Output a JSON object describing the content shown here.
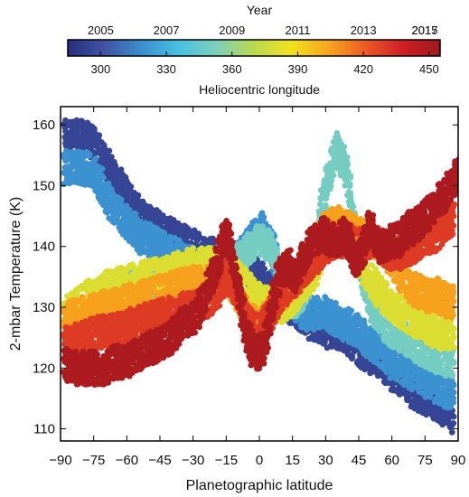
{
  "chart_data": {
    "type": "scatter",
    "title": "",
    "xlabel": "Planetographic latitude",
    "ylabel": "2-mbar Temperature (K)",
    "xlim": [
      -90,
      90
    ],
    "ylim": [
      108,
      163
    ],
    "x_ticks": [
      "−90",
      "−75",
      "−60",
      "−45",
      "−30",
      "−15",
      "0",
      "15",
      "30",
      "45",
      "60",
      "75",
      "90"
    ],
    "y_ticks": [
      "110",
      "120",
      "130",
      "140",
      "150",
      "160"
    ],
    "grid": false,
    "colorbar": {
      "top_label": "Year",
      "bottom_label": "Heliocentric longitude",
      "range": [
        285,
        455
      ],
      "year_ticks": [
        {
          "value": 300,
          "label": "2005"
        },
        {
          "value": 330,
          "label": "2007"
        },
        {
          "value": 360,
          "label": "2009"
        },
        {
          "value": 390,
          "label": "2011"
        },
        {
          "value": 420,
          "label": "2013"
        },
        {
          "value": 450,
          "label": "2015"
        },
        {
          "value": 470,
          "label": "2017"
        }
      ],
      "longitude_ticks": [
        "300",
        "330",
        "360",
        "390",
        "420",
        "450"
      ],
      "stops": [
        "#2a2e7e",
        "#3f55a5",
        "#3b8fd0",
        "#48c1e0",
        "#7dcfb9",
        "#b9d94f",
        "#f2e21c",
        "#f7a51d",
        "#ee5a24",
        "#cf1f26",
        "#9e1a1c"
      ]
    },
    "series": [
      {
        "longitude": 295,
        "points": [
          [
            -88,
            158
          ],
          [
            -85,
            158
          ],
          [
            -80,
            158
          ],
          [
            -75,
            157
          ],
          [
            -70,
            154
          ],
          [
            -65,
            151
          ],
          [
            -60,
            148
          ],
          [
            -55,
            146
          ],
          [
            -50,
            144
          ],
          [
            -45,
            143
          ],
          [
            -40,
            142
          ],
          [
            -35,
            141
          ],
          [
            -30,
            140
          ],
          [
            -25,
            139
          ],
          [
            -20,
            139
          ],
          [
            -15,
            138
          ],
          [
            -10,
            137
          ],
          [
            -5,
            136
          ],
          [
            0,
            135
          ],
          [
            5,
            133
          ],
          [
            10,
            131
          ],
          [
            15,
            130
          ],
          [
            20,
            128
          ],
          [
            25,
            127
          ],
          [
            30,
            126
          ],
          [
            35,
            126
          ],
          [
            40,
            125
          ],
          [
            45,
            123
          ],
          [
            50,
            122
          ],
          [
            55,
            121
          ],
          [
            60,
            119
          ],
          [
            65,
            118
          ],
          [
            70,
            116
          ],
          [
            75,
            115
          ],
          [
            80,
            114
          ],
          [
            85,
            113
          ],
          [
            88,
            112
          ]
        ]
      },
      {
        "longitude": 320,
        "points": [
          [
            -88,
            153
          ],
          [
            -85,
            153
          ],
          [
            -80,
            153
          ],
          [
            -75,
            152
          ],
          [
            -70,
            149
          ],
          [
            -65,
            146
          ],
          [
            -60,
            144
          ],
          [
            -55,
            142
          ],
          [
            -50,
            141
          ],
          [
            -45,
            140
          ],
          [
            -40,
            139
          ],
          [
            -35,
            138
          ],
          [
            -30,
            137
          ],
          [
            -25,
            137
          ],
          [
            -20,
            137
          ],
          [
            -15,
            138
          ],
          [
            -10,
            138
          ],
          [
            -5,
            140
          ],
          [
            0,
            143
          ],
          [
            5,
            141
          ],
          [
            10,
            134
          ],
          [
            15,
            131
          ],
          [
            20,
            129
          ],
          [
            25,
            129
          ],
          [
            30,
            129
          ],
          [
            35,
            128
          ],
          [
            40,
            127
          ],
          [
            45,
            126
          ],
          [
            50,
            124
          ],
          [
            55,
            123
          ],
          [
            60,
            121
          ],
          [
            65,
            120
          ],
          [
            70,
            119
          ],
          [
            75,
            118
          ],
          [
            80,
            117
          ],
          [
            85,
            116
          ],
          [
            88,
            116
          ]
        ]
      },
      {
        "longitude": 350,
        "points": [
          [
            -88,
            126
          ],
          [
            -80,
            128
          ],
          [
            -70,
            131
          ],
          [
            -60,
            133
          ],
          [
            -50,
            134
          ],
          [
            -40,
            135
          ],
          [
            -30,
            136
          ],
          [
            -20,
            137
          ],
          [
            -10,
            138
          ],
          [
            0,
            141
          ],
          [
            5,
            140
          ],
          [
            10,
            135
          ],
          [
            15,
            131
          ],
          [
            20,
            132
          ],
          [
            25,
            138
          ],
          [
            30,
            150
          ],
          [
            35,
            156
          ],
          [
            40,
            152
          ],
          [
            45,
            137
          ],
          [
            50,
            131
          ],
          [
            55,
            128
          ],
          [
            60,
            126
          ],
          [
            70,
            124
          ],
          [
            80,
            122
          ],
          [
            88,
            121
          ]
        ]
      },
      {
        "longitude": 380,
        "points": [
          [
            -88,
            129
          ],
          [
            -80,
            131
          ],
          [
            -70,
            133
          ],
          [
            -60,
            134
          ],
          [
            -50,
            135
          ],
          [
            -40,
            136
          ],
          [
            -30,
            137
          ],
          [
            -20,
            137
          ],
          [
            -10,
            135
          ],
          [
            0,
            131
          ],
          [
            10,
            130
          ],
          [
            20,
            133
          ],
          [
            25,
            136
          ],
          [
            30,
            140
          ],
          [
            35,
            143
          ],
          [
            40,
            141
          ],
          [
            45,
            138
          ],
          [
            50,
            135
          ],
          [
            55,
            132
          ],
          [
            60,
            130
          ],
          [
            70,
            128
          ],
          [
            80,
            126
          ],
          [
            88,
            125
          ]
        ]
      },
      {
        "longitude": 405,
        "points": [
          [
            -88,
            128
          ],
          [
            -80,
            129
          ],
          [
            -70,
            130
          ],
          [
            -60,
            131
          ],
          [
            -50,
            132
          ],
          [
            -40,
            133
          ],
          [
            -30,
            134
          ],
          [
            -20,
            134
          ],
          [
            -15,
            135
          ],
          [
            -10,
            132
          ],
          [
            -5,
            128
          ],
          [
            0,
            127
          ],
          [
            5,
            129
          ],
          [
            10,
            132
          ],
          [
            15,
            134
          ],
          [
            20,
            137
          ],
          [
            25,
            140
          ],
          [
            30,
            143
          ],
          [
            35,
            144
          ],
          [
            40,
            143
          ],
          [
            45,
            142
          ],
          [
            50,
            141
          ],
          [
            55,
            140
          ],
          [
            60,
            138
          ],
          [
            65,
            135
          ],
          [
            70,
            133
          ],
          [
            75,
            132
          ],
          [
            80,
            132
          ],
          [
            85,
            131
          ],
          [
            88,
            131
          ]
        ]
      },
      {
        "longitude": 430,
        "points": [
          [
            -88,
            124
          ],
          [
            -80,
            125
          ],
          [
            -70,
            126
          ],
          [
            -60,
            127
          ],
          [
            -50,
            128
          ],
          [
            -40,
            129
          ],
          [
            -30,
            130
          ],
          [
            -20,
            132
          ],
          [
            -15,
            135
          ],
          [
            -10,
            133
          ],
          [
            -5,
            127
          ],
          [
            0,
            126
          ],
          [
            5,
            129
          ],
          [
            10,
            132
          ],
          [
            15,
            134
          ],
          [
            20,
            136
          ],
          [
            25,
            138
          ],
          [
            30,
            140
          ],
          [
            35,
            141
          ],
          [
            40,
            141
          ],
          [
            45,
            140
          ],
          [
            50,
            141
          ],
          [
            55,
            140
          ],
          [
            60,
            139
          ],
          [
            65,
            139
          ],
          [
            70,
            140
          ],
          [
            75,
            141
          ],
          [
            80,
            142
          ],
          [
            85,
            144
          ],
          [
            88,
            145
          ]
        ]
      },
      {
        "longitude": 450,
        "points": [
          [
            -88,
            121
          ],
          [
            -85,
            120
          ],
          [
            -80,
            120
          ],
          [
            -75,
            120
          ],
          [
            -70,
            120
          ],
          [
            -65,
            121
          ],
          [
            -60,
            121
          ],
          [
            -55,
            122
          ],
          [
            -50,
            123
          ],
          [
            -45,
            124
          ],
          [
            -40,
            125
          ],
          [
            -35,
            127
          ],
          [
            -30,
            128
          ],
          [
            -25,
            131
          ],
          [
            -20,
            136
          ],
          [
            -17,
            140
          ],
          [
            -15,
            142
          ],
          [
            -13,
            140
          ],
          [
            -10,
            134
          ],
          [
            -7,
            128
          ],
          [
            -5,
            125
          ],
          [
            -3,
            123
          ],
          [
            0,
            122
          ],
          [
            3,
            125
          ],
          [
            5,
            129
          ],
          [
            8,
            134
          ],
          [
            10,
            136
          ],
          [
            13,
            137
          ],
          [
            15,
            135
          ],
          [
            18,
            136
          ],
          [
            20,
            138
          ],
          [
            23,
            140
          ],
          [
            25,
            141
          ],
          [
            28,
            142
          ],
          [
            30,
            142
          ],
          [
            33,
            141
          ],
          [
            35,
            141
          ],
          [
            38,
            142
          ],
          [
            40,
            141
          ],
          [
            43,
            138
          ],
          [
            45,
            138
          ],
          [
            48,
            141
          ],
          [
            50,
            143
          ],
          [
            53,
            141
          ],
          [
            55,
            140
          ],
          [
            58,
            140
          ],
          [
            60,
            141
          ],
          [
            63,
            141
          ],
          [
            65,
            142
          ],
          [
            68,
            143
          ],
          [
            70,
            143
          ],
          [
            73,
            144
          ],
          [
            75,
            145
          ],
          [
            78,
            146
          ],
          [
            80,
            147
          ],
          [
            83,
            148
          ],
          [
            85,
            149
          ],
          [
            88,
            151
          ],
          [
            90,
            152
          ]
        ]
      }
    ]
  }
}
